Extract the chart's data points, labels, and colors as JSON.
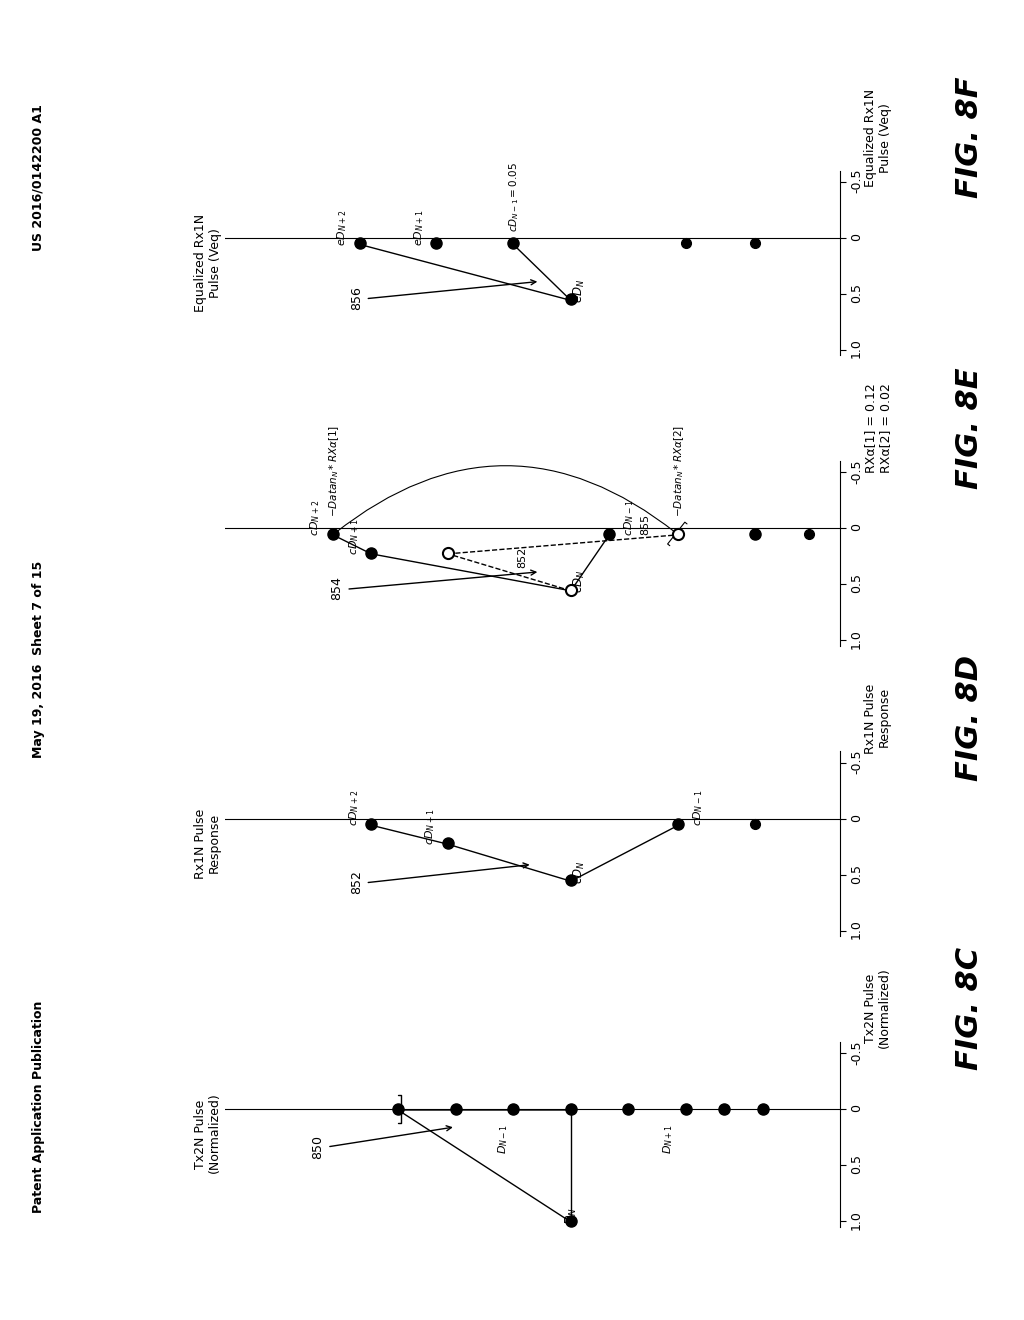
{
  "header_left": "Patent Application Publication",
  "header_center": "May 19, 2016  Sheet 7 of 15",
  "header_right": "US 2016/0142200 A1",
  "bg_color": "#ffffff",
  "fig_8c": {
    "label": "FIG. 8C",
    "title": "Tx2N Pulse\n(Normalized)",
    "ref": "850",
    "D_N": [
      1.0,
      0.0
    ],
    "cluster_x": [
      0.0,
      0.0,
      0.0,
      0.0,
      0.0,
      0.0,
      0.0,
      0.0,
      0.0
    ],
    "cluster_y": [
      -4.0,
      -3.0,
      -2.0,
      -1.5,
      -1.0,
      0.0,
      1.0,
      2.0,
      3.0
    ]
  },
  "fig_8d": {
    "label": "FIG. 8D",
    "title": "Rx1N Pulse\nResponse",
    "ref": "852"
  },
  "fig_8e": {
    "label": "FIG. 8E",
    "title": "",
    "ref": "854",
    "notes": [
      "RXα[1] = 0.12",
      "RXα[2] = 0.02"
    ]
  },
  "fig_8f": {
    "label": "FIG. 8F",
    "title": "Equalized Rx1N\nPulse (Veq)",
    "ref": "856"
  }
}
